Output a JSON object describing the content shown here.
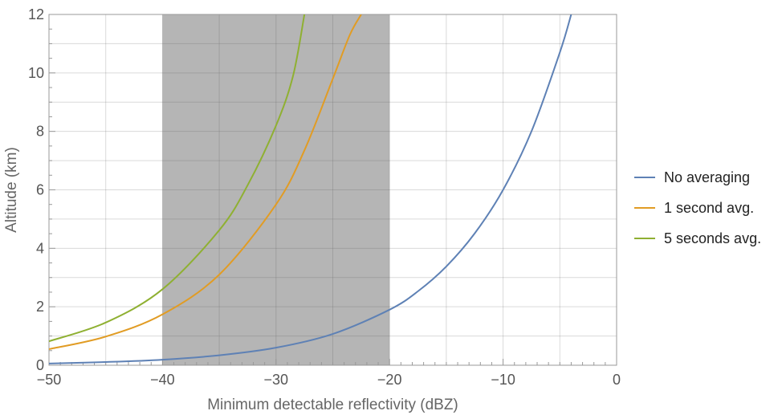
{
  "chart_data": {
    "type": "line",
    "title": "",
    "xlabel": "Minimum detectable reflectivity (dBZ)",
    "ylabel": "Altitude (km)",
    "xlim": [
      -50,
      0
    ],
    "ylim": [
      0,
      12
    ],
    "x_ticks": [
      -50,
      -40,
      -30,
      -20,
      -10,
      0
    ],
    "x_tick_labels": [
      "−50",
      "−40",
      "−30",
      "−20",
      "−10",
      "0"
    ],
    "y_ticks": [
      0,
      2,
      4,
      6,
      8,
      10,
      12
    ],
    "y_tick_labels": [
      "0",
      "2",
      "4",
      "6",
      "8",
      "10",
      "12"
    ],
    "grid": true,
    "legend_position": "right",
    "shaded_region": {
      "x": [
        -40,
        -20
      ],
      "color": "#999999"
    },
    "series": [
      {
        "name": "No averaging",
        "color": "#5e81b5",
        "x": [
          -50,
          -45,
          -40,
          -35,
          -30,
          -25,
          -20,
          -17.5,
          -15,
          -12.5,
          -10,
          -7.5,
          -5,
          -4
        ],
        "y": [
          0.06,
          0.11,
          0.19,
          0.34,
          0.6,
          1.07,
          1.9,
          2.53,
          3.38,
          4.51,
          6.0,
          8.0,
          10.7,
          12.0
        ]
      },
      {
        "name": "1 second avg.",
        "color": "#e19c24",
        "x": [
          -50,
          -45,
          -40,
          -35,
          -30,
          -27.5,
          -25,
          -23.5,
          -22.5
        ],
        "y": [
          0.55,
          0.98,
          1.74,
          3.1,
          5.5,
          7.35,
          9.8,
          11.3,
          12.0
        ]
      },
      {
        "name": "5 seconds avg.",
        "color": "#8fb032",
        "x": [
          -50,
          -45,
          -40,
          -35,
          -32.5,
          -30,
          -28.5,
          -27.5
        ],
        "y": [
          0.82,
          1.46,
          2.6,
          4.62,
          6.16,
          8.2,
          9.9,
          12.0
        ]
      }
    ]
  }
}
